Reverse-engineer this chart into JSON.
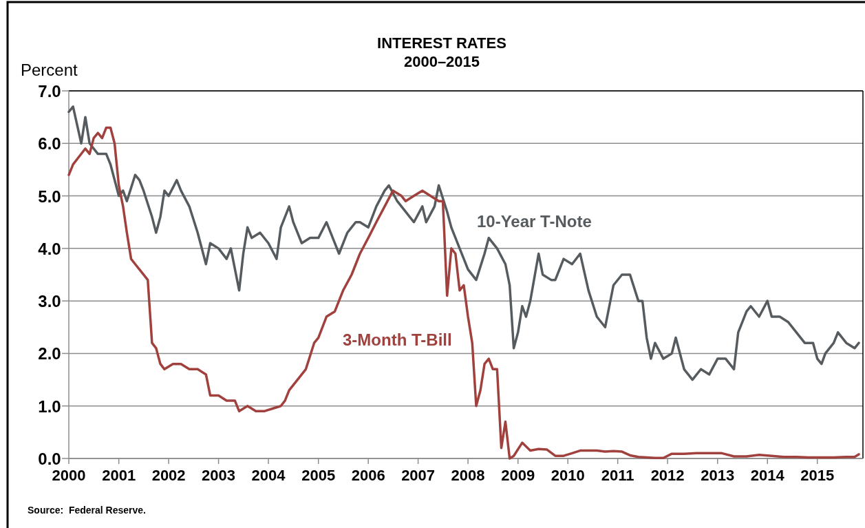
{
  "chart_data": {
    "type": "line",
    "title": "INTEREST RATES\n2000–2015",
    "ylabel": "Percent",
    "annotations": [
      "Source:  Federal Reserve."
    ],
    "xlim": [
      "2000-01-01",
      "2015-12-01"
    ],
    "xticks": [
      "2000",
      "2001",
      "2002",
      "2003",
      "2004",
      "2005",
      "2006",
      "2007",
      "2008",
      "2009",
      "2010",
      "2011",
      "2012",
      "2013",
      "2014",
      "2015"
    ],
    "ylim": [
      0,
      7
    ],
    "yticks": [
      {
        "value": 0,
        "label": "0.0"
      },
      {
        "value": 1,
        "label": "1.0"
      },
      {
        "value": 2,
        "label": "2.0"
      },
      {
        "value": 3,
        "label": "3.0"
      },
      {
        "value": 4,
        "label": "4.0"
      },
      {
        "value": 5,
        "label": "5.0"
      },
      {
        "value": 6,
        "label": "6.0"
      },
      {
        "value": 7,
        "label": "7.0"
      }
    ],
    "grid": "y",
    "legend": false,
    "line_style": "solid",
    "series": [
      {
        "name": "10-Year T-Note",
        "color": "#555b5e",
        "x": [
          "2000-01",
          "2000-02",
          "2000-04",
          "2000-05",
          "2000-06",
          "2000-08",
          "2000-10",
          "2000-11",
          "2001-01",
          "2001-02",
          "2001-03",
          "2001-05",
          "2001-06",
          "2001-07",
          "2001-09",
          "2001-10",
          "2001-11",
          "2001-12",
          "2002-01",
          "2002-03",
          "2002-04",
          "2002-06",
          "2002-08",
          "2002-10",
          "2002-11",
          "2003-01",
          "2003-03",
          "2003-04",
          "2003-06",
          "2003-07",
          "2003-08",
          "2003-09",
          "2003-11",
          "2004-01",
          "2004-03",
          "2004-04",
          "2004-06",
          "2004-07",
          "2004-09",
          "2004-11",
          "2005-01",
          "2005-03",
          "2005-05",
          "2005-06",
          "2005-08",
          "2005-10",
          "2005-11",
          "2006-01",
          "2006-03",
          "2006-05",
          "2006-06",
          "2006-08",
          "2006-10",
          "2006-12",
          "2007-02",
          "2007-03",
          "2007-05",
          "2007-06",
          "2007-08",
          "2007-09",
          "2007-11",
          "2008-01",
          "2008-03",
          "2008-05",
          "2008-06",
          "2008-08",
          "2008-10",
          "2008-11",
          "2008-12",
          "2009-01",
          "2009-02",
          "2009-03",
          "2009-04",
          "2009-06",
          "2009-07",
          "2009-09",
          "2009-10",
          "2009-12",
          "2010-02",
          "2010-04",
          "2010-06",
          "2010-08",
          "2010-10",
          "2010-12",
          "2011-02",
          "2011-04",
          "2011-06",
          "2011-07",
          "2011-08",
          "2011-09",
          "2011-10",
          "2011-12",
          "2012-02",
          "2012-03",
          "2012-05",
          "2012-07",
          "2012-09",
          "2012-11",
          "2013-01",
          "2013-03",
          "2013-05",
          "2013-06",
          "2013-08",
          "2013-09",
          "2013-11",
          "2014-01",
          "2014-02",
          "2014-04",
          "2014-06",
          "2014-08",
          "2014-10",
          "2014-12",
          "2015-01",
          "2015-02",
          "2015-03",
          "2015-05",
          "2015-06",
          "2015-08",
          "2015-10",
          "2015-11"
        ],
        "values": [
          6.6,
          6.7,
          6.0,
          6.5,
          6.0,
          5.8,
          5.8,
          5.6,
          5.0,
          5.1,
          4.9,
          5.4,
          5.3,
          5.1,
          4.6,
          4.3,
          4.6,
          5.1,
          5.0,
          5.3,
          5.1,
          4.8,
          4.3,
          3.7,
          4.1,
          4.0,
          3.8,
          4.0,
          3.2,
          3.9,
          4.4,
          4.2,
          4.3,
          4.1,
          3.8,
          4.4,
          4.8,
          4.5,
          4.1,
          4.2,
          4.2,
          4.5,
          4.1,
          3.9,
          4.3,
          4.5,
          4.5,
          4.4,
          4.8,
          5.1,
          5.2,
          4.9,
          4.7,
          4.5,
          4.8,
          4.5,
          4.8,
          5.2,
          4.7,
          4.4,
          4.0,
          3.6,
          3.4,
          3.9,
          4.2,
          4.0,
          3.7,
          3.3,
          2.1,
          2.4,
          2.9,
          2.7,
          3.0,
          3.9,
          3.5,
          3.4,
          3.4,
          3.8,
          3.7,
          3.9,
          3.2,
          2.7,
          2.5,
          3.3,
          3.5,
          3.5,
          3.0,
          3.0,
          2.3,
          1.9,
          2.2,
          1.9,
          2.0,
          2.3,
          1.7,
          1.5,
          1.7,
          1.6,
          1.9,
          1.9,
          1.7,
          2.4,
          2.8,
          2.9,
          2.7,
          3.0,
          2.7,
          2.7,
          2.6,
          2.4,
          2.2,
          2.2,
          1.9,
          1.8,
          2.0,
          2.2,
          2.4,
          2.2,
          2.1,
          2.2
        ]
      },
      {
        "name": "3-Month T-Bill",
        "color": "#a0413e",
        "x": [
          "2000-01",
          "2000-02",
          "2000-04",
          "2000-05",
          "2000-06",
          "2000-07",
          "2000-08",
          "2000-09",
          "2000-10",
          "2000-11",
          "2000-12",
          "2001-01",
          "2001-02",
          "2001-03",
          "2001-04",
          "2001-05",
          "2001-06",
          "2001-08",
          "2001-09",
          "2001-10",
          "2001-11",
          "2001-12",
          "2002-02",
          "2002-04",
          "2002-06",
          "2002-08",
          "2002-10",
          "2002-11",
          "2003-01",
          "2003-03",
          "2003-05",
          "2003-06",
          "2003-08",
          "2003-10",
          "2003-12",
          "2004-02",
          "2004-04",
          "2004-05",
          "2004-06",
          "2004-08",
          "2004-10",
          "2004-12",
          "2005-01",
          "2005-03",
          "2005-05",
          "2005-07",
          "2005-09",
          "2005-11",
          "2006-01",
          "2006-03",
          "2006-05",
          "2006-07",
          "2006-09",
          "2006-10",
          "2006-12",
          "2007-02",
          "2007-04",
          "2007-06",
          "2007-07",
          "2007-08",
          "2007-09",
          "2007-10",
          "2007-11",
          "2007-12",
          "2008-01",
          "2008-02",
          "2008-03",
          "2008-04",
          "2008-05",
          "2008-06",
          "2008-07",
          "2008-08",
          "2008-09",
          "2008-10",
          "2008-11",
          "2008-12",
          "2009-02",
          "2009-04",
          "2009-06",
          "2009-08",
          "2009-10",
          "2009-12",
          "2010-02",
          "2010-04",
          "2010-06",
          "2010-08",
          "2010-10",
          "2010-12",
          "2011-02",
          "2011-04",
          "2011-06",
          "2011-08",
          "2011-10",
          "2011-12",
          "2012-02",
          "2012-05",
          "2012-08",
          "2012-11",
          "2013-02",
          "2013-05",
          "2013-08",
          "2013-11",
          "2014-02",
          "2014-05",
          "2014-08",
          "2014-11",
          "2015-02",
          "2015-05",
          "2015-08",
          "2015-10",
          "2015-11"
        ],
        "values": [
          5.4,
          5.6,
          5.8,
          5.9,
          5.8,
          6.1,
          6.2,
          6.1,
          6.3,
          6.3,
          6.0,
          5.2,
          4.8,
          4.3,
          3.8,
          3.7,
          3.6,
          3.4,
          2.2,
          2.1,
          1.8,
          1.7,
          1.8,
          1.8,
          1.7,
          1.7,
          1.6,
          1.2,
          1.2,
          1.1,
          1.1,
          0.9,
          1.0,
          0.9,
          0.9,
          0.95,
          1.0,
          1.1,
          1.3,
          1.5,
          1.7,
          2.2,
          2.3,
          2.7,
          2.8,
          3.2,
          3.5,
          3.9,
          4.2,
          4.5,
          4.8,
          5.1,
          5.0,
          4.9,
          5.0,
          5.1,
          5.0,
          4.9,
          4.9,
          3.1,
          4.0,
          3.9,
          3.2,
          3.3,
          2.7,
          2.2,
          1.0,
          1.3,
          1.8,
          1.9,
          1.7,
          1.7,
          0.2,
          0.7,
          0.0,
          0.05,
          0.3,
          0.15,
          0.18,
          0.17,
          0.05,
          0.05,
          0.1,
          0.15,
          0.15,
          0.15,
          0.13,
          0.14,
          0.13,
          0.06,
          0.03,
          0.02,
          0.01,
          0.01,
          0.09,
          0.09,
          0.1,
          0.1,
          0.1,
          0.04,
          0.04,
          0.07,
          0.05,
          0.03,
          0.03,
          0.02,
          0.02,
          0.02,
          0.03,
          0.03,
          0.08
        ]
      }
    ]
  }
}
